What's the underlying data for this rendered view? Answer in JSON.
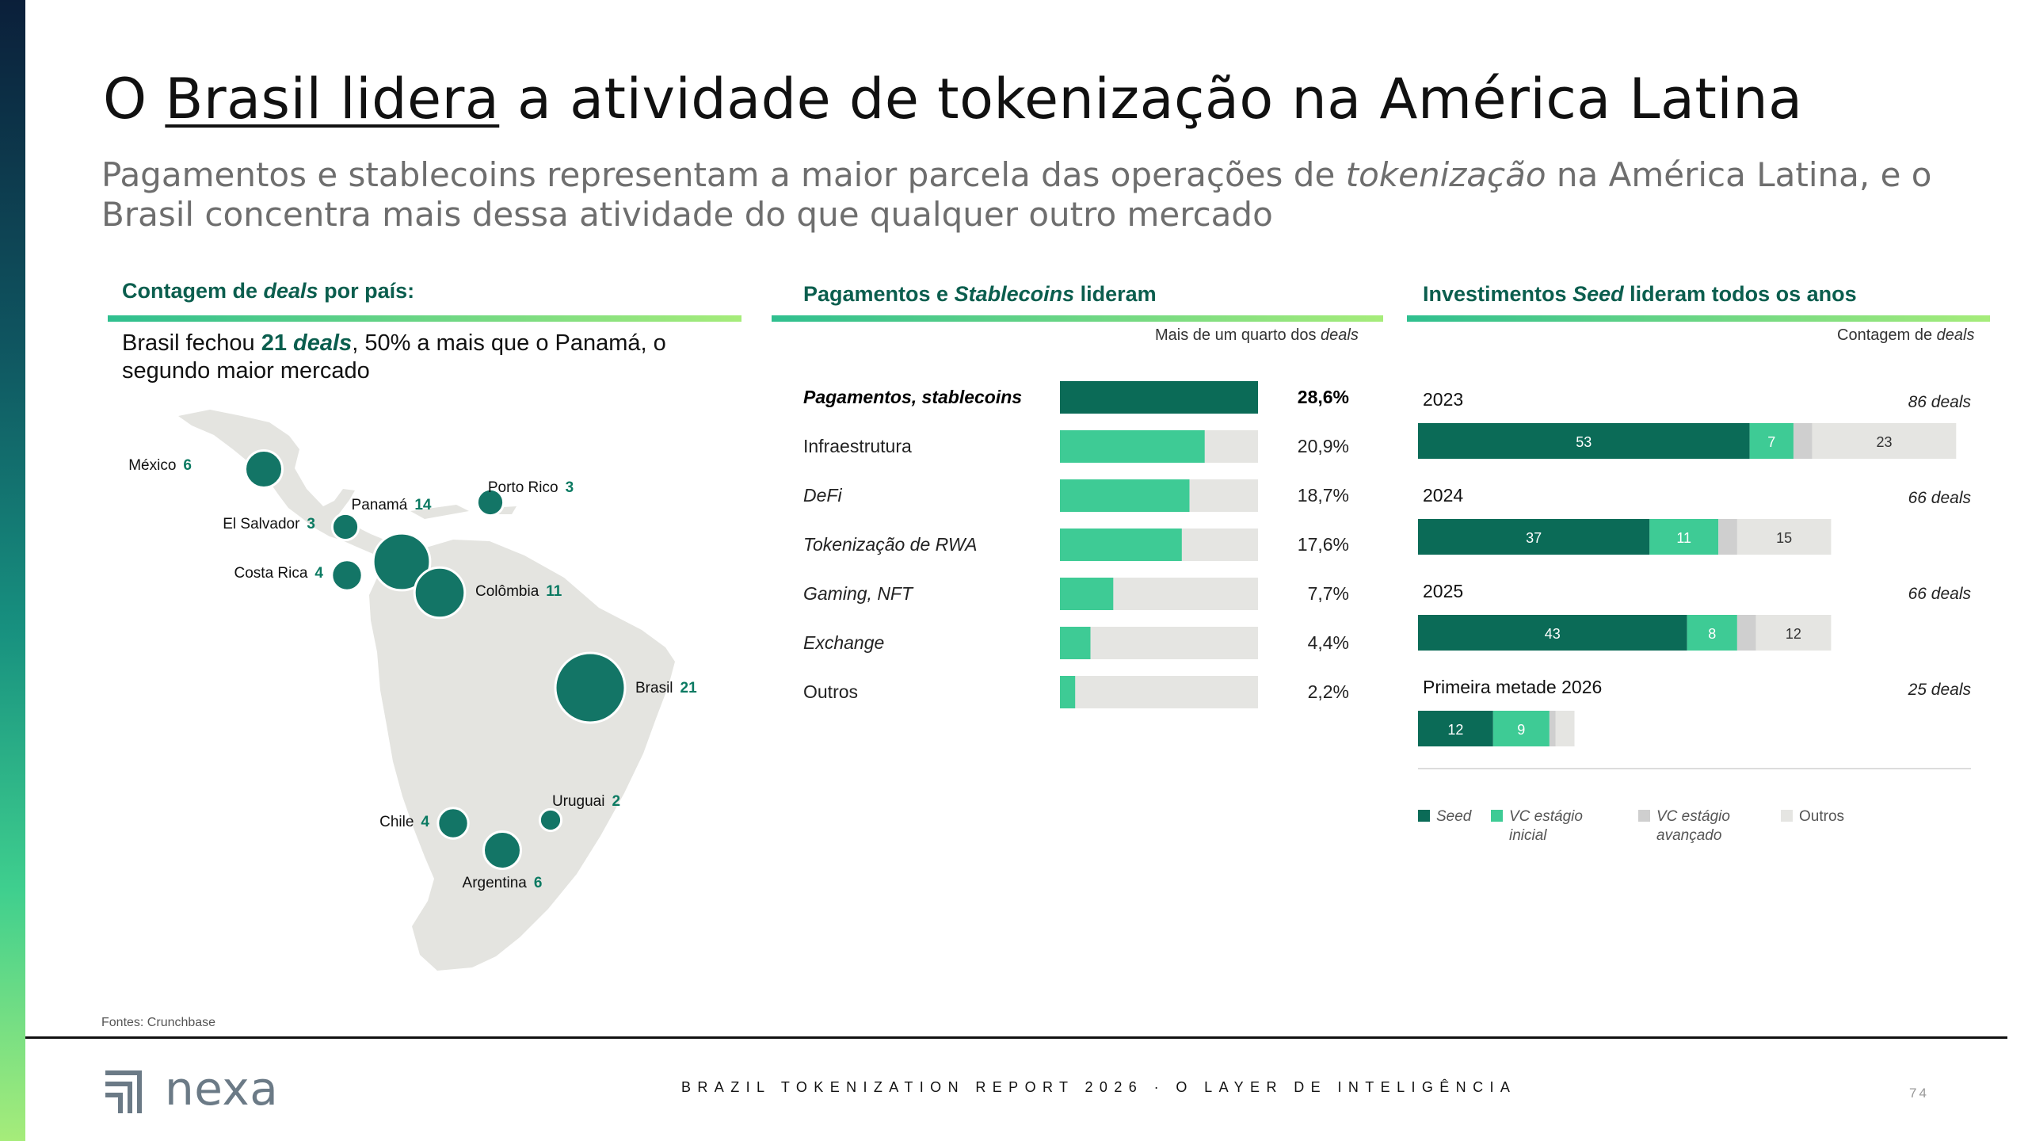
{
  "header": {
    "title_pre": "O ",
    "title_link": "Brasil lidera",
    "title_post": " a atividade de tokenização na América Latina",
    "subtitle_a": "Pagamentos e stablecoins representam a maior parcela das operações de ",
    "subtitle_em": "tokenização",
    "subtitle_b": " na América Latina, e o Brasil concentra mais dessa atividade do que qualquer outro mercado"
  },
  "map_panel": {
    "head_a": "Contagem de ",
    "head_em": "deals",
    "head_b": " por país:",
    "caption_a": "Brasil fechou ",
    "caption_bold": "21 ",
    "caption_bold_em": "deals",
    "caption_b": ", 50% a mais que o Panamá, o segundo maior mercado"
  },
  "mid_panel": {
    "head_a": "Pagamentos e ",
    "head_em": "Stablecoins",
    "head_b": " lideram",
    "note_a": "Mais de um quarto dos ",
    "note_em": "deals"
  },
  "right_panel": {
    "head_a": "Investimentos ",
    "head_em": "Seed",
    "head_b": " lideram todos os anos",
    "note_a": "Contagem de ",
    "note_em": "deals"
  },
  "chart_data": [
    {
      "type": "scatter",
      "subtype": "bubble-map",
      "points": [
        {
          "country": "México",
          "value": 6
        },
        {
          "country": "El Salvador",
          "value": 3
        },
        {
          "country": "Costa Rica",
          "value": 4
        },
        {
          "country": "Panamá",
          "value": 14
        },
        {
          "country": "Porto Rico",
          "value": 3
        },
        {
          "country": "Colômbia",
          "value": 11
        },
        {
          "country": "Brasil",
          "value": 21
        },
        {
          "country": "Chile",
          "value": 4
        },
        {
          "country": "Argentina",
          "value": 6
        },
        {
          "country": "Uruguai",
          "value": 2
        }
      ]
    },
    {
      "type": "bar",
      "orientation": "horizontal",
      "categories": [
        "Pagamentos, stablecoins",
        "Infraestrutura",
        "DeFi",
        "Tokenização de RWA",
        "Gaming, NFT",
        "Exchange",
        "Outros"
      ],
      "category_italic": [
        true,
        false,
        true,
        true,
        true,
        true,
        false
      ],
      "values": [
        28.6,
        20.9,
        18.7,
        17.6,
        7.7,
        4.4,
        2.2
      ],
      "labels": [
        "28,6%",
        "20,9%",
        "18,7%",
        "17,6%",
        "7,7%",
        "4,4%",
        "2,2%"
      ],
      "xlim": [
        0,
        28.6
      ]
    },
    {
      "type": "bar",
      "orientation": "horizontal",
      "stacked": true,
      "categories": [
        "2023",
        "2024",
        "2025",
        "Primeira metade 2026"
      ],
      "totals_labels": [
        "86 deals",
        "66 deals",
        "66 deals",
        "25 deals"
      ],
      "totals": [
        86,
        66,
        66,
        25
      ],
      "series": [
        {
          "name": "Seed",
          "values": [
            53,
            37,
            43,
            12
          ],
          "labels": [
            "53",
            "37",
            "43",
            "12"
          ],
          "color": "#0b6b57"
        },
        {
          "name": "VC estágio inicial",
          "values": [
            7,
            11,
            8,
            9
          ],
          "labels": [
            "7",
            "11",
            "8",
            "9"
          ],
          "color": "#3ecb95"
        },
        {
          "name": "VC estágio avançado",
          "values": [
            3,
            3,
            3,
            1
          ],
          "labels": [
            "",
            "",
            "",
            ""
          ],
          "color": "#cfcfcf"
        },
        {
          "name": "Outros",
          "values": [
            23,
            15,
            12,
            3
          ],
          "labels": [
            "23",
            "15",
            "12",
            ""
          ],
          "color": "#e5e5e2"
        }
      ]
    }
  ],
  "colors": {
    "dark_green": "#0b6b57",
    "bright_green": "#3ecb95",
    "track_gray": "#e5e5e2",
    "map_land": "#e4e4e0",
    "panel_head": "#0b5e4e"
  },
  "footer": {
    "source": "Fontes: Crunchbase",
    "logo": "nexa",
    "report": "BRAZIL TOKENIZATION REPORT 2026 · O LAYER DE INTELIGÊNCIA",
    "page": "74"
  }
}
